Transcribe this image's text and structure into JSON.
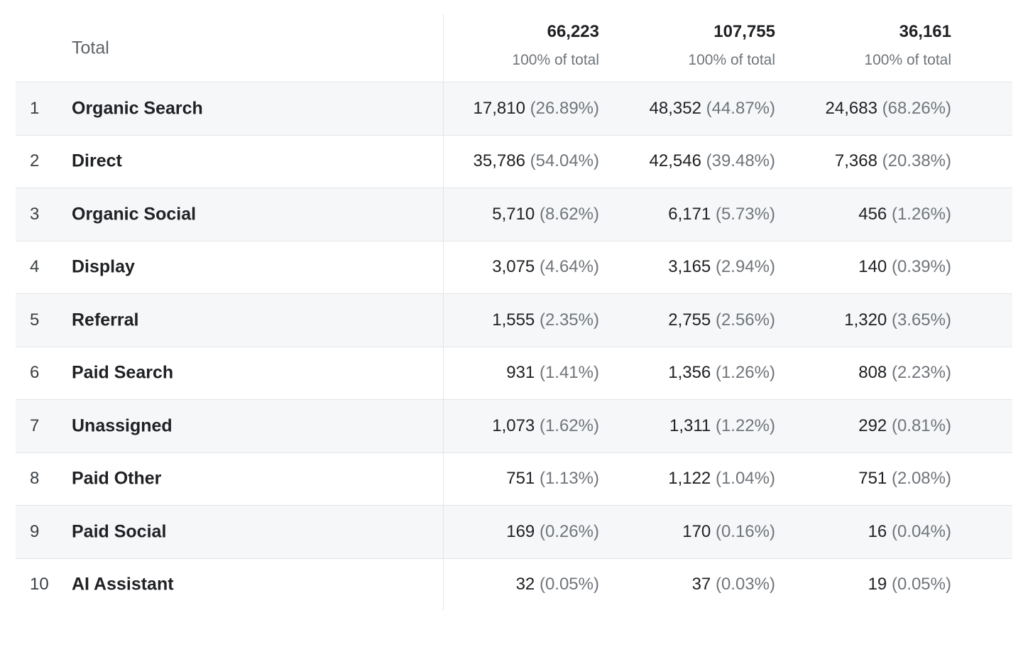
{
  "header": {
    "label": "Total",
    "totals": [
      {
        "value": "66,223",
        "sub": "100% of total"
      },
      {
        "value": "107,755",
        "sub": "100% of total"
      },
      {
        "value": "36,161",
        "sub": "100% of total"
      }
    ]
  },
  "rows": [
    {
      "rank": "1",
      "channel": "Organic Search",
      "cells": [
        {
          "value": "17,810",
          "pct": "(26.89%)"
        },
        {
          "value": "48,352",
          "pct": "(44.87%)"
        },
        {
          "value": "24,683",
          "pct": "(68.26%)"
        }
      ]
    },
    {
      "rank": "2",
      "channel": "Direct",
      "cells": [
        {
          "value": "35,786",
          "pct": "(54.04%)"
        },
        {
          "value": "42,546",
          "pct": "(39.48%)"
        },
        {
          "value": "7,368",
          "pct": "(20.38%)"
        }
      ]
    },
    {
      "rank": "3",
      "channel": "Organic Social",
      "cells": [
        {
          "value": "5,710",
          "pct": "(8.62%)"
        },
        {
          "value": "6,171",
          "pct": "(5.73%)"
        },
        {
          "value": "456",
          "pct": "(1.26%)"
        }
      ]
    },
    {
      "rank": "4",
      "channel": "Display",
      "cells": [
        {
          "value": "3,075",
          "pct": "(4.64%)"
        },
        {
          "value": "3,165",
          "pct": "(2.94%)"
        },
        {
          "value": "140",
          "pct": "(0.39%)"
        }
      ]
    },
    {
      "rank": "5",
      "channel": "Referral",
      "cells": [
        {
          "value": "1,555",
          "pct": "(2.35%)"
        },
        {
          "value": "2,755",
          "pct": "(2.56%)"
        },
        {
          "value": "1,320",
          "pct": "(3.65%)"
        }
      ]
    },
    {
      "rank": "6",
      "channel": "Paid Search",
      "cells": [
        {
          "value": "931",
          "pct": "(1.41%)"
        },
        {
          "value": "1,356",
          "pct": "(1.26%)"
        },
        {
          "value": "808",
          "pct": "(2.23%)"
        }
      ]
    },
    {
      "rank": "7",
      "channel": "Unassigned",
      "cells": [
        {
          "value": "1,073",
          "pct": "(1.62%)"
        },
        {
          "value": "1,311",
          "pct": "(1.22%)"
        },
        {
          "value": "292",
          "pct": "(0.81%)"
        }
      ]
    },
    {
      "rank": "8",
      "channel": "Paid Other",
      "cells": [
        {
          "value": "751",
          "pct": "(1.13%)"
        },
        {
          "value": "1,122",
          "pct": "(1.04%)"
        },
        {
          "value": "751",
          "pct": "(2.08%)"
        }
      ]
    },
    {
      "rank": "9",
      "channel": "Paid Social",
      "cells": [
        {
          "value": "169",
          "pct": "(0.26%)"
        },
        {
          "value": "170",
          "pct": "(0.16%)"
        },
        {
          "value": "16",
          "pct": "(0.04%)"
        }
      ]
    },
    {
      "rank": "10",
      "channel": "AI Assistant",
      "cells": [
        {
          "value": "32",
          "pct": "(0.05%)"
        },
        {
          "value": "37",
          "pct": "(0.03%)"
        },
        {
          "value": "19",
          "pct": "(0.05%)"
        }
      ]
    }
  ]
}
